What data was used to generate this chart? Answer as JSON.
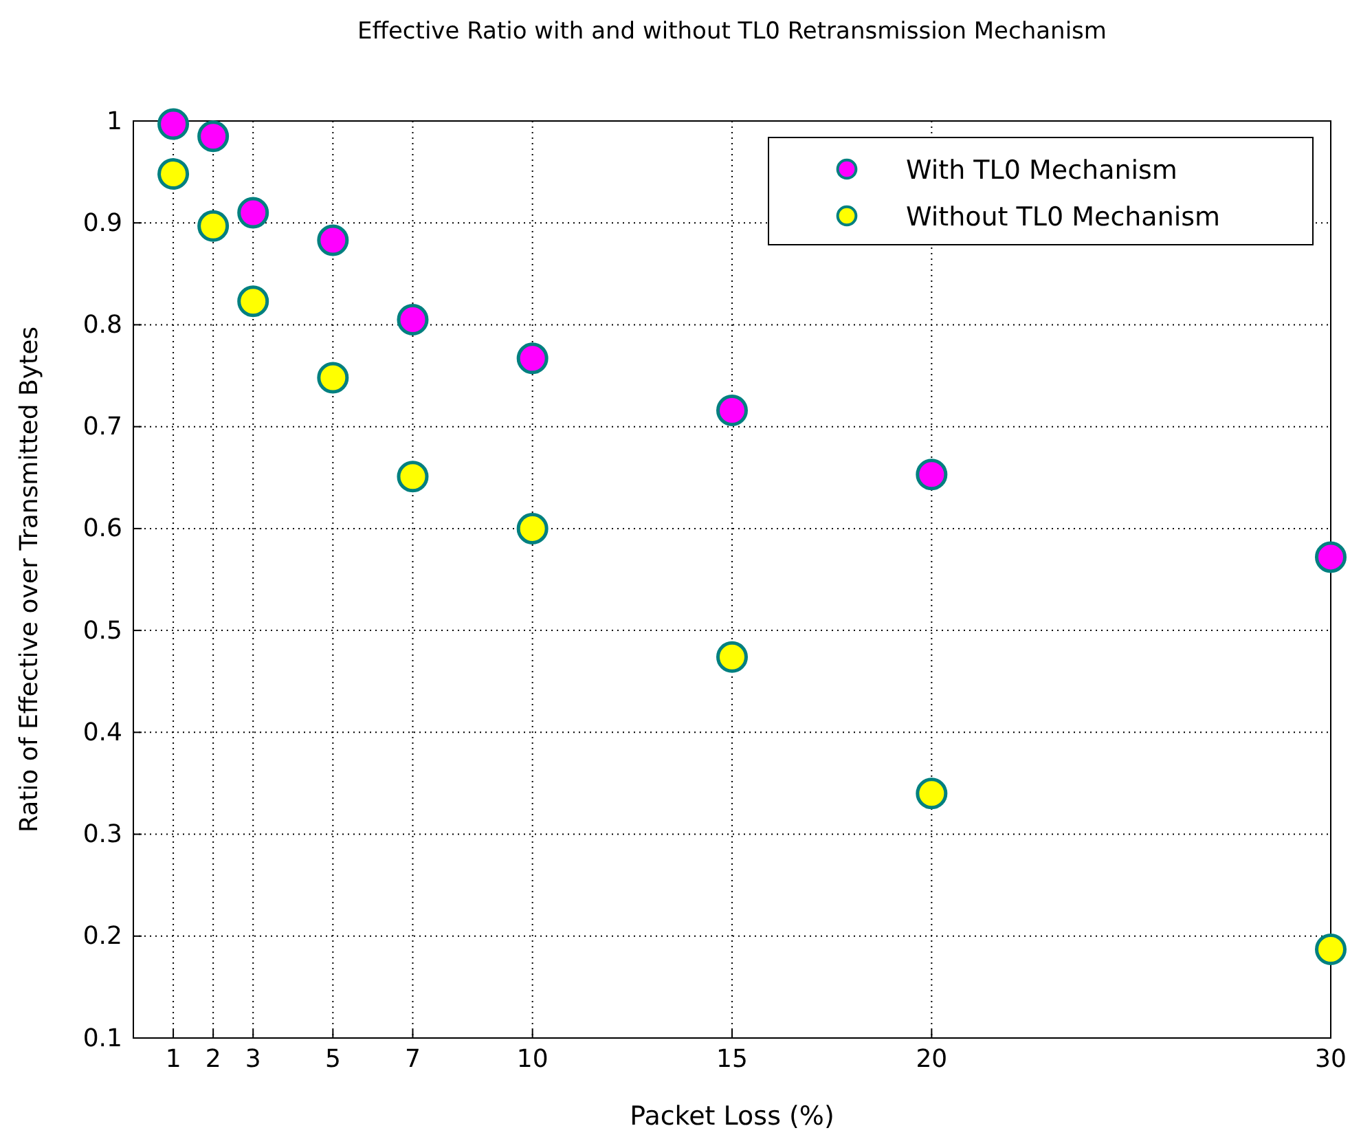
{
  "chart_data": {
    "type": "scatter",
    "title": "Effective Ratio with and without TL0 Retransmission Mechanism",
    "xlabel": "Packet Loss (%)",
    "ylabel": "Ratio of Effective over Transmitted Bytes",
    "x": [
      1,
      2,
      3,
      5,
      7,
      10,
      15,
      20,
      30
    ],
    "series": [
      {
        "name": "With TL0 Mechanism",
        "color": "#ff00ff",
        "values": [
          0.997,
          0.985,
          0.91,
          0.883,
          0.805,
          0.767,
          0.716,
          0.653,
          0.572
        ]
      },
      {
        "name": "Without TL0 Mechanism",
        "color": "#ffff00",
        "values": [
          0.948,
          0.897,
          0.823,
          0.748,
          0.651,
          0.6,
          0.474,
          0.34,
          0.187
        ]
      }
    ],
    "xlim": [
      0,
      30
    ],
    "xticks": [
      1,
      2,
      3,
      5,
      7,
      10,
      15,
      20,
      30
    ],
    "ylim": [
      0.1,
      1
    ],
    "yticks": [
      0.1,
      0.2,
      0.3,
      0.4,
      0.5,
      0.6,
      0.7,
      0.8,
      0.9,
      1
    ],
    "grid": true,
    "legend": "top right",
    "marker": "circle"
  }
}
